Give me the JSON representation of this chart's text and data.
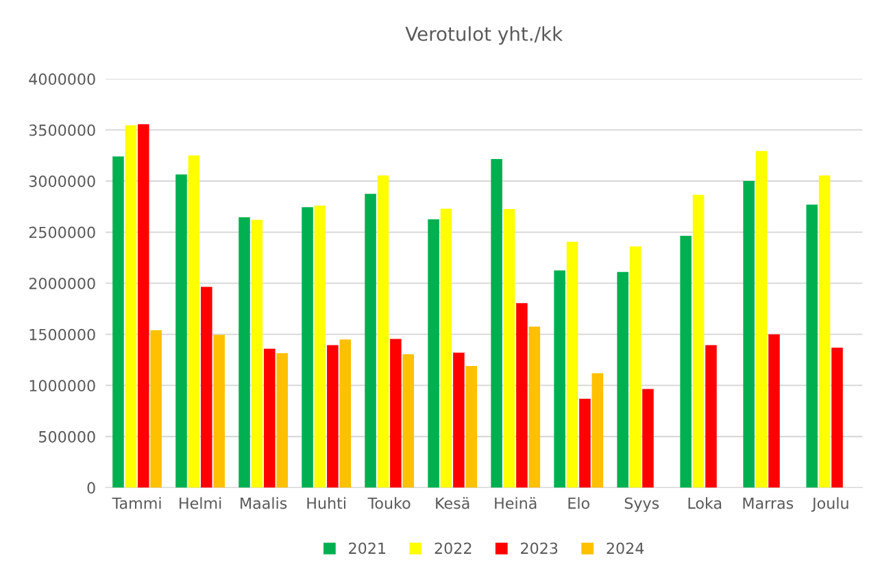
{
  "chart_data": {
    "type": "bar",
    "title": "Verotulot yht./kk",
    "categories": [
      "Tammi",
      "Helmi",
      "Maalis",
      "Huhti",
      "Touko",
      "Kesä",
      "Heinä",
      "Elo",
      "Syys",
      "Loka",
      "Marras",
      "Joulu"
    ],
    "series": [
      {
        "name": "2021",
        "color": "#00b050",
        "values": [
          3240000,
          3065000,
          2645000,
          2745000,
          2875000,
          2625000,
          3215000,
          2125000,
          2110000,
          2465000,
          3000000,
          2770000
        ]
      },
      {
        "name": "2022",
        "color": "#ffff00",
        "values": [
          3545000,
          3250000,
          2620000,
          2760000,
          3055000,
          2730000,
          2725000,
          2405000,
          2360000,
          2865000,
          3295000,
          3055000
        ]
      },
      {
        "name": "2023",
        "color": "#ff0000",
        "values": [
          3555000,
          1965000,
          1360000,
          1395000,
          1455000,
          1320000,
          1805000,
          870000,
          965000,
          1395000,
          1500000,
          1370000
        ]
      },
      {
        "name": "2024",
        "color": "#ffc000",
        "values": [
          1540000,
          1495000,
          1315000,
          1450000,
          1305000,
          1190000,
          1575000,
          1120000,
          null,
          null,
          null,
          null
        ]
      }
    ],
    "ylim": [
      0,
      4000000
    ],
    "yticks": [
      0,
      500000,
      1000000,
      1500000,
      2000000,
      2500000,
      3000000,
      3500000,
      4000000
    ],
    "grid": "y",
    "legend": "bottom"
  }
}
